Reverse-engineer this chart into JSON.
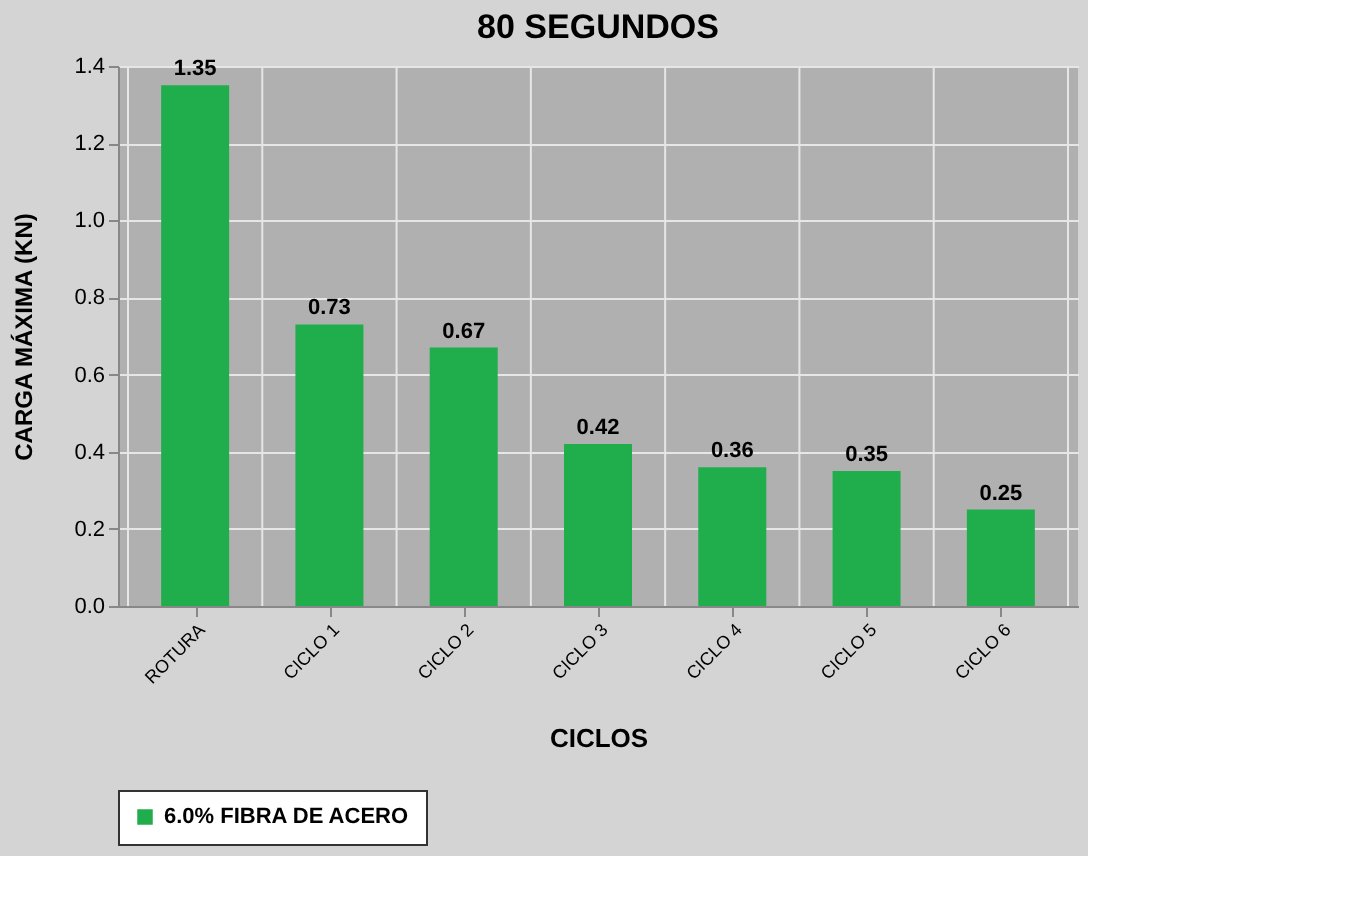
{
  "chart_data": {
    "type": "bar",
    "title": "80 SEGUNDOS",
    "xlabel": "CICLOS",
    "ylabel": "CARGA MÁXIMA (KN)",
    "categories": [
      "ROTURA",
      "CICLO 1",
      "CICLO 2",
      "CICLO 3",
      "CICLO 4",
      "CICLO 5",
      "CICLO 6"
    ],
    "series": [
      {
        "name": "6.0% FIBRA DE ACERO",
        "color": "#1fae4b",
        "values": [
          1.35,
          0.73,
          0.67,
          0.42,
          0.36,
          0.35,
          0.25
        ]
      }
    ],
    "ylim": [
      0,
      1.4
    ],
    "yticks": [
      {
        "value": 0,
        "label": "0.0"
      },
      {
        "value": 0.2,
        "label": "0.2"
      },
      {
        "value": 0.4,
        "label": "0.4"
      },
      {
        "value": 0.6,
        "label": "0.6"
      },
      {
        "value": 0.8,
        "label": "0.8"
      },
      {
        "value": 1.0,
        "label": "1.0"
      },
      {
        "value": 1.2,
        "label": "1.2"
      },
      {
        "value": 1.4,
        "label": "1.4"
      }
    ],
    "grid": true,
    "legend": "bottom left",
    "data_labels": true
  }
}
